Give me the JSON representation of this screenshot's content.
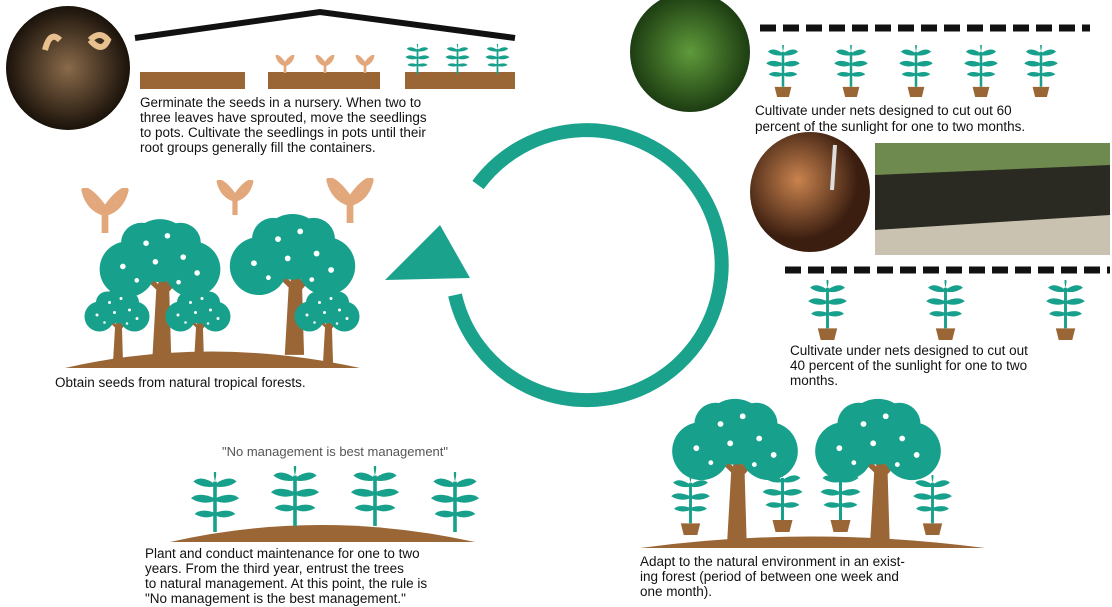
{
  "steps": [
    {
      "lines": [
        "Obtain seeds from natural tropical forests."
      ]
    },
    {
      "lines": [
        "Germinate the seeds in a nursery. When two to",
        "three leaves have sprouted, move the seedlings",
        "to pots. Cultivate the seedlings in pots until their",
        "root groups generally fill the containers."
      ]
    },
    {
      "lines": [
        "Cultivate under nets designed to cut out 60",
        "percent of the sunlight for one to two months."
      ]
    },
    {
      "lines": [
        "Cultivate under nets designed to cut out",
        "40 percent of the sunlight for one to two",
        "months."
      ]
    },
    {
      "lines": [
        "Adapt to the natural environment in an exist-",
        "ing forest (period of between one week and",
        "one month)."
      ]
    },
    {
      "lines": [
        "Plant and conduct maintenance for one to two",
        "years. From the third year, entrust the trees",
        "to natural management. At this point, the rule is",
        "\"No management is the best management.\""
      ]
    }
  ],
  "quote": "\"No management is best management\""
}
